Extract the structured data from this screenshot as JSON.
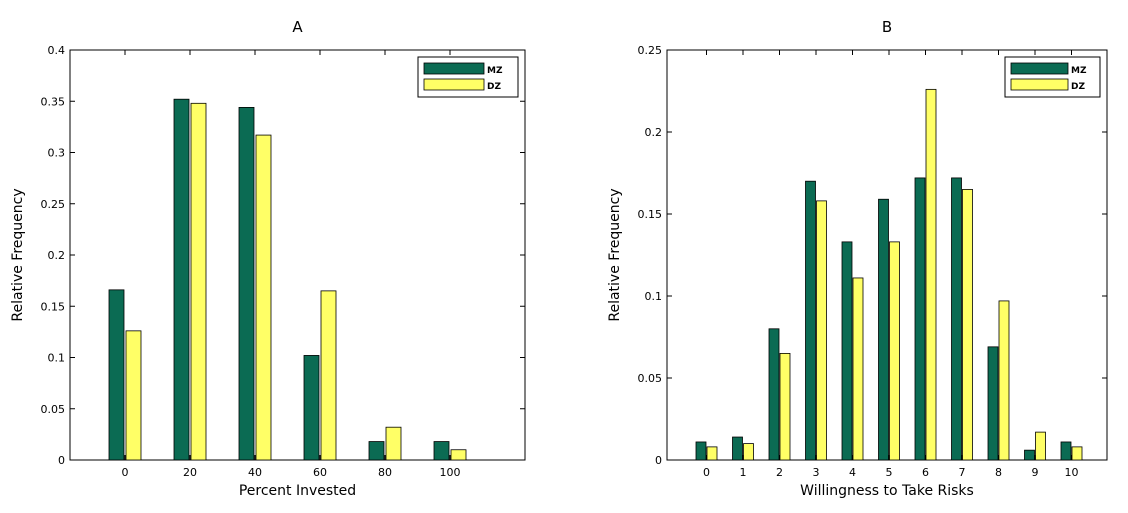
{
  "colors": {
    "mz": "#0b6b53",
    "dz": "#ffff66",
    "axis": "#000000",
    "background": "#ffffff"
  },
  "chart_data": [
    {
      "type": "bar",
      "title": "A",
      "xlabel": "Percent Invested",
      "ylabel": "Relative Frequency",
      "categories": [
        "0",
        "20",
        "40",
        "60",
        "80",
        "100"
      ],
      "ylim": [
        0,
        0.4
      ],
      "yticks": [
        "0",
        "0.05",
        "0.1",
        "0.15",
        "0.2",
        "0.25",
        "0.3",
        "0.35",
        "0.4"
      ],
      "legend": "top-right",
      "series": [
        {
          "name": "MZ",
          "values": [
            0.166,
            0.352,
            0.344,
            0.102,
            0.018,
            0.018
          ]
        },
        {
          "name": "DZ",
          "values": [
            0.126,
            0.348,
            0.317,
            0.165,
            0.032,
            0.01
          ]
        }
      ]
    },
    {
      "type": "bar",
      "title": "B",
      "xlabel": "Willingness to Take Risks",
      "ylabel": "Relative Frequency",
      "categories": [
        "0",
        "1",
        "2",
        "3",
        "4",
        "5",
        "6",
        "7",
        "8",
        "9",
        "10"
      ],
      "ylim": [
        0,
        0.25
      ],
      "yticks": [
        "0",
        "0.05",
        "0.1",
        "0.15",
        "0.2",
        "0.25"
      ],
      "legend": "top-right",
      "series": [
        {
          "name": "MZ",
          "values": [
            0.011,
            0.014,
            0.08,
            0.17,
            0.133,
            0.159,
            0.172,
            0.172,
            0.069,
            0.006,
            0.011
          ]
        },
        {
          "name": "DZ",
          "values": [
            0.008,
            0.01,
            0.065,
            0.158,
            0.111,
            0.133,
            0.226,
            0.165,
            0.097,
            0.017,
            0.008
          ]
        }
      ]
    }
  ]
}
